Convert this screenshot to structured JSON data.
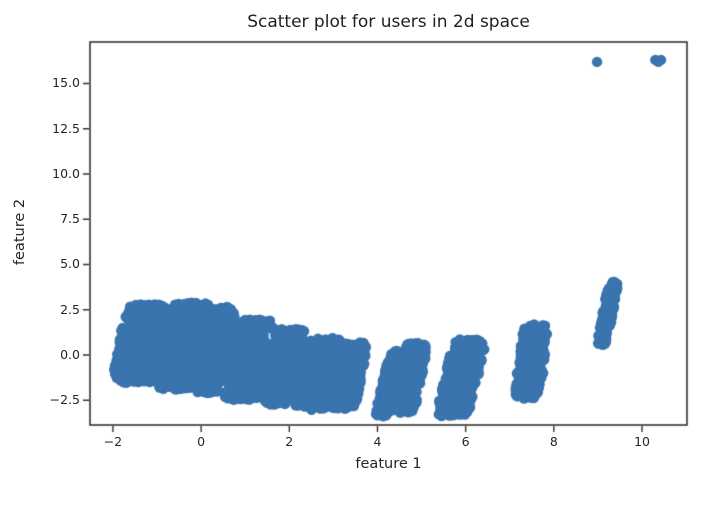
{
  "figure": {
    "background": "#ffffff",
    "spine_color": "#333333",
    "tick_color": "#333333",
    "text_color": "#262626"
  },
  "chart_data": {
    "type": "scatter",
    "title": "Scatter plot for users in 2d space",
    "xlabel": "feature 1",
    "ylabel": "feature 2",
    "xlim": [
      -2.52,
      11.02
    ],
    "ylim": [
      -3.87,
      17.29
    ],
    "grid": false,
    "legend": false,
    "x_ticks": {
      "values": [
        -2,
        0,
        2,
        4,
        6,
        8,
        10
      ],
      "labels": [
        "−2",
        "0",
        "2",
        "4",
        "6",
        "8",
        "10"
      ]
    },
    "y_ticks": {
      "values": [
        -2.5,
        0.0,
        2.5,
        5.0,
        7.5,
        10.0,
        12.5,
        15.0
      ],
      "labels": [
        "−2.5",
        "0.0",
        "2.5",
        "5.0",
        "7.5",
        "10.0",
        "12.5",
        "15.0"
      ]
    },
    "marker": {
      "color": "#3a74ae",
      "radius_px": 5.2
    },
    "seed": 1337,
    "clusters": [
      {
        "cx": -1.35,
        "cy": 0.62,
        "half_width": 0.52,
        "half_height": 2.18,
        "shear": 0.08,
        "count": 520
      },
      {
        "cx": -0.4,
        "cy": 0.5,
        "half_width": 0.5,
        "half_height": 2.4,
        "shear": 0.08,
        "count": 520
      },
      {
        "cx": 0.33,
        "cy": 0.28,
        "half_width": 0.33,
        "half_height": 2.38,
        "shear": 0.08,
        "count": 330
      },
      {
        "cx": 1.08,
        "cy": -0.28,
        "half_width": 0.45,
        "half_height": 2.23,
        "shear": 0.08,
        "count": 430
      },
      {
        "cx": 1.88,
        "cy": -0.65,
        "half_width": 0.36,
        "half_height": 2.1,
        "shear": 0.08,
        "count": 340
      },
      {
        "cx": 2.65,
        "cy": -1.05,
        "half_width": 0.42,
        "half_height": 2.0,
        "shear": 0.08,
        "count": 380
      },
      {
        "cx": 3.35,
        "cy": -1.13,
        "half_width": 0.3,
        "half_height": 1.83,
        "shear": 0.08,
        "count": 300
      },
      {
        "cx": 4.28,
        "cy": -1.53,
        "half_width": 0.17,
        "half_height": 1.88,
        "shear": 0.1,
        "count": 230
      },
      {
        "cx": 4.72,
        "cy": -1.28,
        "half_width": 0.28,
        "half_height": 1.93,
        "shear": 0.08,
        "count": 280
      },
      {
        "cx": 5.9,
        "cy": -1.25,
        "half_width": 0.38,
        "half_height": 2.15,
        "shear": 0.1,
        "count": 330
      },
      {
        "cx": 7.5,
        "cy": -0.33,
        "half_width": 0.3,
        "half_height": 2.1,
        "shear": 0.06,
        "count": 270
      },
      {
        "cx": 9.22,
        "cy": 2.28,
        "half_width": 0.12,
        "half_height": 1.76,
        "shear": 0.08,
        "count": 110
      }
    ],
    "outlier_points": [
      [
        8.98,
        16.19
      ],
      [
        10.3,
        16.3
      ],
      [
        10.43,
        16.3
      ],
      [
        10.37,
        16.19
      ]
    ]
  }
}
